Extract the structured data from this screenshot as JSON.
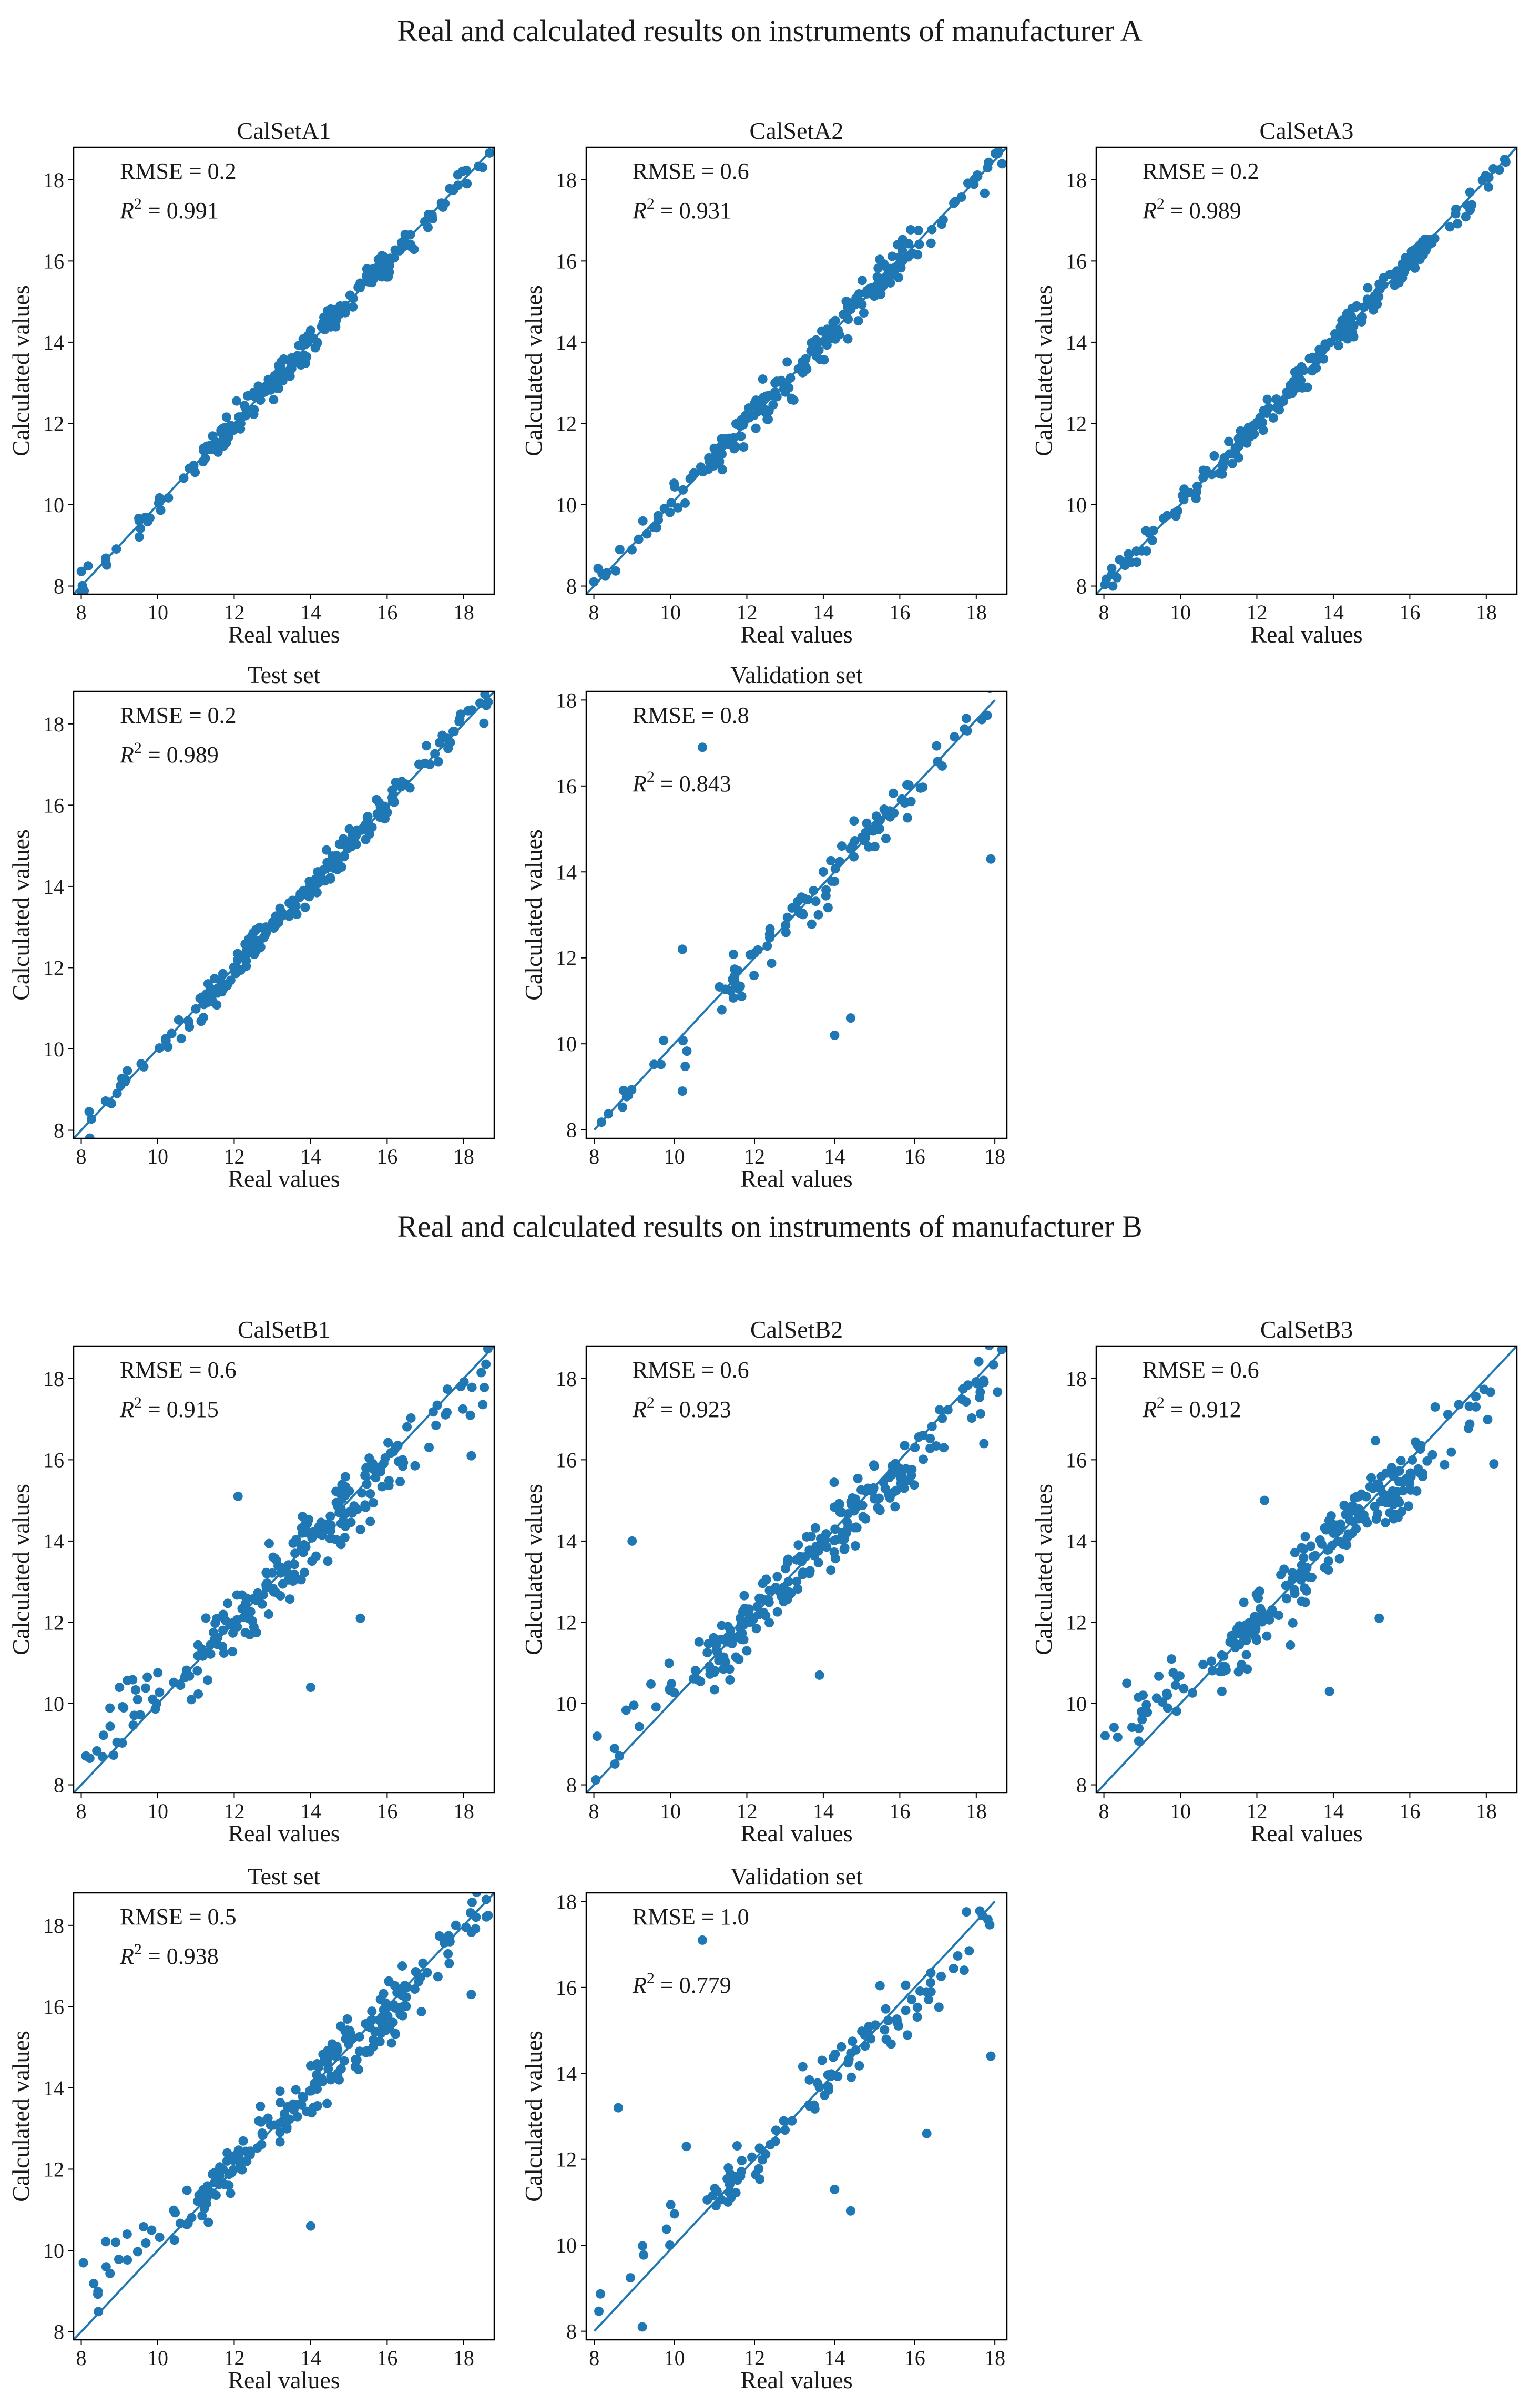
{
  "suptitles": {
    "a": "Real and calculated results on instruments of manufacturer A",
    "b": "Real and calculated results on instruments of manufacturer B"
  },
  "colors": {
    "point": "#1f77b4",
    "line": "#1f77b4",
    "axis": "#000000"
  },
  "chart_data": [
    {
      "type": "scatter",
      "id": "a1",
      "title": "CalSetA1",
      "xlabel": "Real values",
      "ylabel": "Calculated values",
      "xlim": [
        7.8,
        18.8
      ],
      "ylim": [
        7.8,
        18.8
      ],
      "xticks": [
        8,
        10,
        12,
        14,
        16,
        18
      ],
      "yticks": [
        8,
        10,
        12,
        14,
        16,
        18
      ],
      "rmse_label": "RMSE = 0.2",
      "r2_prefix": "R",
      "r2_exp": "2",
      "r2_value": " = 0.991",
      "metric_pos": "top-left",
      "fit_line": [
        [
          7.8,
          7.8
        ],
        [
          18.8,
          18.8
        ]
      ],
      "noise": 0.18,
      "n_points": 230,
      "seed": 11,
      "outliers": []
    },
    {
      "type": "scatter",
      "id": "a2",
      "title": "CalSetA2",
      "xlabel": "Real values",
      "ylabel": "Calculated values",
      "xlim": [
        7.8,
        18.8
      ],
      "ylim": [
        7.8,
        18.8
      ],
      "xticks": [
        8,
        10,
        12,
        14,
        16,
        18
      ],
      "yticks": [
        8,
        10,
        12,
        14,
        16,
        18
      ],
      "rmse_label": "RMSE = 0.6",
      "r2_prefix": "R",
      "r2_exp": "2",
      "r2_value": " = 0.931",
      "metric_pos": "top-left",
      "fit_line": [
        [
          7.8,
          7.8
        ],
        [
          18.8,
          18.8
        ]
      ],
      "noise": 0.22,
      "n_points": 230,
      "seed": 23,
      "outliers": []
    },
    {
      "type": "scatter",
      "id": "a3",
      "title": "CalSetA3",
      "xlabel": "Real values",
      "ylabel": "Calculated values",
      "xlim": [
        7.8,
        18.8
      ],
      "ylim": [
        7.8,
        18.8
      ],
      "xticks": [
        8,
        10,
        12,
        14,
        16,
        18
      ],
      "yticks": [
        8,
        10,
        12,
        14,
        16,
        18
      ],
      "rmse_label": "RMSE = 0.2",
      "r2_prefix": "R",
      "r2_exp": "2",
      "r2_value": " = 0.989",
      "metric_pos": "top-left",
      "fit_line": [
        [
          7.8,
          7.8
        ],
        [
          18.8,
          18.8
        ]
      ],
      "noise": 0.18,
      "n_points": 230,
      "seed": 37,
      "outliers": []
    },
    {
      "type": "scatter",
      "id": "a4",
      "title": "Test set",
      "xlabel": "Real values",
      "ylabel": "Calculated values",
      "xlim": [
        7.8,
        18.8
      ],
      "ylim": [
        7.8,
        18.8
      ],
      "xticks": [
        8,
        10,
        12,
        14,
        16,
        18
      ],
      "yticks": [
        8,
        10,
        12,
        14,
        16,
        18
      ],
      "rmse_label": "RMSE = 0.2",
      "r2_prefix": "R",
      "r2_exp": "2",
      "r2_value": " = 0.989",
      "metric_pos": "top-left",
      "fit_line": [
        [
          7.8,
          7.8
        ],
        [
          18.8,
          18.8
        ]
      ],
      "noise": 0.18,
      "n_points": 230,
      "seed": 41,
      "outliers": []
    },
    {
      "type": "scatter",
      "id": "a5",
      "title": "Validation set",
      "xlabel": "Real values",
      "ylabel": "Calculated values",
      "xlim": [
        7.8,
        18.3
      ],
      "ylim": [
        7.8,
        18.2
      ],
      "xticks": [
        8,
        10,
        12,
        14,
        16,
        18
      ],
      "yticks": [
        8,
        10,
        12,
        14,
        16,
        18
      ],
      "rmse_label": "RMSE = 0.8",
      "r2_prefix": "R",
      "r2_exp": "2",
      "r2_value": " = 0.843",
      "metric_pos": "top-left-spaced",
      "fit_line": [
        [
          8.0,
          8.0
        ],
        [
          18.0,
          18.0
        ]
      ],
      "noise": 0.28,
      "n_points": 110,
      "seed": 53,
      "outliers": [
        [
          10.7,
          16.9
        ],
        [
          17.9,
          14.3
        ],
        [
          14.0,
          10.2
        ],
        [
          14.4,
          10.6
        ],
        [
          10.2,
          12.2
        ],
        [
          10.2,
          8.9
        ]
      ]
    },
    {
      "type": "scatter",
      "id": "b1",
      "title": "CalSetB1",
      "xlabel": "Real values",
      "ylabel": "Calculated values",
      "xlim": [
        7.8,
        18.8
      ],
      "ylim": [
        7.8,
        18.8
      ],
      "xticks": [
        8,
        10,
        12,
        14,
        16,
        18
      ],
      "yticks": [
        8,
        10,
        12,
        14,
        16,
        18
      ],
      "rmse_label": "RMSE = 0.6",
      "r2_prefix": "R",
      "r2_exp": "2",
      "r2_value": " = 0.915",
      "metric_pos": "top-left",
      "fit_line": [
        [
          7.8,
          7.8
        ],
        [
          18.8,
          18.8
        ]
      ],
      "noise": 0.4,
      "n_points": 230,
      "seed": 61,
      "outliers": [
        [
          12.1,
          15.1
        ],
        [
          14.0,
          10.4
        ],
        [
          15.3,
          12.1
        ],
        [
          18.2,
          16.1
        ],
        [
          9.0,
          10.4
        ]
      ]
    },
    {
      "type": "scatter",
      "id": "b2",
      "title": "CalSetB2",
      "xlabel": "Real values",
      "ylabel": "Calculated values",
      "xlim": [
        7.8,
        18.8
      ],
      "ylim": [
        7.8,
        18.8
      ],
      "xticks": [
        8,
        10,
        12,
        14,
        16,
        18
      ],
      "yticks": [
        8,
        10,
        12,
        14,
        16,
        18
      ],
      "rmse_label": "RMSE = 0.6",
      "r2_prefix": "R",
      "r2_exp": "2",
      "r2_value": " = 0.923",
      "metric_pos": "top-left",
      "fit_line": [
        [
          7.8,
          7.8
        ],
        [
          18.8,
          18.8
        ]
      ],
      "noise": 0.38,
      "n_points": 230,
      "seed": 73,
      "outliers": [
        [
          9.0,
          14.0
        ],
        [
          13.9,
          10.7
        ],
        [
          18.2,
          16.4
        ],
        [
          12.0,
          11.3
        ]
      ]
    },
    {
      "type": "scatter",
      "id": "b3",
      "title": "CalSetB3",
      "xlabel": "Real values",
      "ylabel": "Calculated values",
      "xlim": [
        7.8,
        18.8
      ],
      "ylim": [
        7.8,
        18.8
      ],
      "xticks": [
        8,
        10,
        12,
        14,
        16,
        18
      ],
      "yticks": [
        8,
        10,
        12,
        14,
        16,
        18
      ],
      "rmse_label": "RMSE = 0.6",
      "r2_prefix": "R",
      "r2_exp": "2",
      "r2_value": " = 0.912",
      "metric_pos": "top-left",
      "fit_line": [
        [
          7.8,
          7.8
        ],
        [
          18.8,
          18.8
        ]
      ],
      "noise": 0.4,
      "n_points": 230,
      "seed": 89,
      "outliers": [
        [
          12.2,
          15.0
        ],
        [
          13.9,
          10.3
        ],
        [
          15.2,
          12.1
        ],
        [
          18.2,
          15.9
        ],
        [
          8.6,
          10.5
        ]
      ]
    },
    {
      "type": "scatter",
      "id": "b4",
      "title": "Test set",
      "xlabel": "Real values",
      "ylabel": "Calculated values",
      "xlim": [
        7.8,
        18.8
      ],
      "ylim": [
        7.8,
        18.8
      ],
      "xticks": [
        8,
        10,
        12,
        14,
        16,
        18
      ],
      "yticks": [
        8,
        10,
        12,
        14,
        16,
        18
      ],
      "rmse_label": "RMSE = 0.5",
      "r2_prefix": "R",
      "r2_exp": "2",
      "r2_value": " = 0.938",
      "metric_pos": "top-left",
      "fit_line": [
        [
          7.8,
          7.8
        ],
        [
          18.8,
          18.8
        ]
      ],
      "noise": 0.36,
      "n_points": 230,
      "seed": 97,
      "outliers": [
        [
          14.0,
          10.6
        ],
        [
          18.2,
          16.3
        ],
        [
          9.2,
          10.4
        ],
        [
          8.9,
          10.2
        ]
      ]
    },
    {
      "type": "scatter",
      "id": "b5",
      "title": "Validation set",
      "xlabel": "Real values",
      "ylabel": "Calculated values",
      "xlim": [
        7.8,
        18.3
      ],
      "ylim": [
        7.8,
        18.2
      ],
      "xticks": [
        8,
        10,
        12,
        14,
        16,
        18
      ],
      "yticks": [
        8,
        10,
        12,
        14,
        16,
        18
      ],
      "rmse_label": "RMSE = 1.0",
      "r2_prefix": "R",
      "r2_exp": "2",
      "r2_value": " = 0.779",
      "metric_pos": "top-left-spaced",
      "fit_line": [
        [
          8.0,
          8.0
        ],
        [
          18.0,
          18.0
        ]
      ],
      "noise": 0.35,
      "n_points": 110,
      "seed": 103,
      "outliers": [
        [
          10.7,
          17.1
        ],
        [
          8.6,
          13.2
        ],
        [
          17.9,
          14.4
        ],
        [
          14.0,
          11.3
        ],
        [
          14.4,
          10.8
        ],
        [
          16.3,
          12.6
        ],
        [
          9.2,
          8.1
        ],
        [
          10.3,
          12.3
        ]
      ]
    }
  ]
}
